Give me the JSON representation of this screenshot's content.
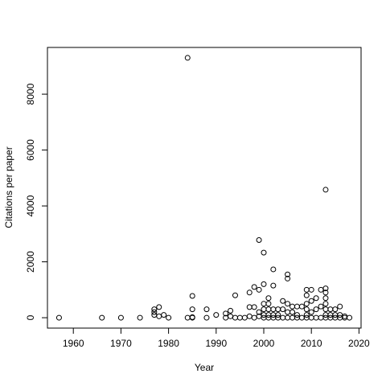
{
  "chart_data": {
    "type": "scatter",
    "x_label": "Year",
    "y_label": "Citations per paper",
    "x": [
      1957,
      1966,
      1970,
      1974,
      1977,
      1977,
      1977,
      1978,
      1978,
      1979,
      1980,
      1984,
      1984,
      1985,
      1985,
      1985,
      1985,
      1988,
      1988,
      1990,
      1992,
      1992,
      1993,
      1993,
      1994,
      1994,
      1995,
      1996,
      1997,
      1997,
      1997,
      1998,
      1998,
      1998,
      1999,
      1999,
      1999,
      1999,
      2000,
      2000,
      2000,
      2000,
      2000,
      2000,
      2001,
      2001,
      2001,
      2001,
      2001,
      2002,
      2002,
      2002,
      2002,
      2002,
      2003,
      2003,
      2003,
      2004,
      2004,
      2004,
      2005,
      2005,
      2005,
      2005,
      2005,
      2006,
      2006,
      2006,
      2007,
      2007,
      2007,
      2008,
      2008,
      2009,
      2009,
      2009,
      2009,
      2009,
      2009,
      2010,
      2010,
      2010,
      2010,
      2011,
      2011,
      2011,
      2012,
      2012,
      2012,
      2013,
      2013,
      2013,
      2013,
      2013,
      2013,
      2013,
      2013,
      2014,
      2014,
      2014,
      2015,
      2015,
      2015,
      2016,
      2016,
      2016,
      2017,
      2017,
      2018
    ],
    "values": [
      0,
      0,
      0,
      0,
      300,
      200,
      100,
      380,
      50,
      100,
      0,
      9300,
      0,
      780,
      300,
      20,
      0,
      300,
      0,
      100,
      150,
      0,
      250,
      50,
      800,
      0,
      0,
      0,
      900,
      380,
      50,
      1100,
      380,
      0,
      2780,
      1000,
      200,
      50,
      2330,
      1200,
      500,
      300,
      100,
      0,
      700,
      500,
      300,
      100,
      0,
      1730,
      1150,
      300,
      100,
      0,
      300,
      100,
      0,
      600,
      300,
      0,
      1550,
      1400,
      500,
      200,
      0,
      400,
      200,
      0,
      400,
      100,
      0,
      400,
      0,
      1000,
      800,
      500,
      300,
      100,
      0,
      1000,
      600,
      200,
      0,
      700,
      300,
      0,
      1000,
      400,
      0,
      4580,
      1050,
      900,
      700,
      500,
      300,
      100,
      0,
      300,
      100,
      0,
      300,
      100,
      0,
      400,
      100,
      0,
      50,
      0,
      0
    ],
    "xlim": [
      1954.56,
      2020.44
    ],
    "xticks": [
      1960,
      1970,
      1980,
      1990,
      2000,
      2010,
      2020
    ],
    "ylim": [
      -372,
      9672
    ],
    "yticks": [
      0,
      2000,
      4000,
      6000,
      8000
    ]
  }
}
